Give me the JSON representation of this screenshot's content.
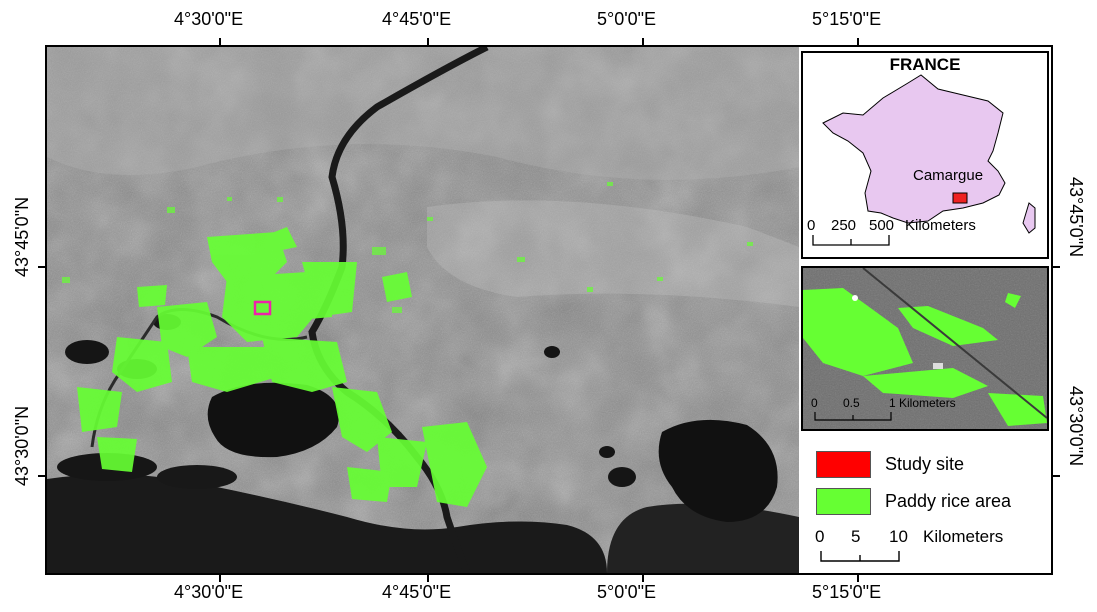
{
  "map": {
    "title_inset": "FRANCE",
    "top_longitudes": [
      "4°30'0\"E",
      "4°45'0\"E",
      "5°0'0\"E",
      "5°15'0\"E"
    ],
    "bottom_longitudes": [
      "4°30'0\"E",
      "4°45'0\"E",
      "5°0'0\"E",
      "5°15'0\"E"
    ],
    "left_latitudes": [
      "43°45'0\"N",
      "43°30'0\"N"
    ],
    "right_latitudes": [
      "43°45'0\"N",
      "43°30'0\"N"
    ]
  },
  "france_inset": {
    "region_label": "Camargue",
    "scale_values": [
      "0",
      "250",
      "500"
    ],
    "scale_unit": "Kilometers",
    "fill_color": "#e8c8f0",
    "marker_color": "#ee2222"
  },
  "detail_inset": {
    "scale_values": [
      "0",
      "0.5",
      "1"
    ],
    "scale_unit": "Kilometers"
  },
  "legend": {
    "items": [
      {
        "label": "Study site",
        "color": "#ff0000"
      },
      {
        "label": "Paddy rice area",
        "color": "#66ff33"
      }
    ],
    "scale_values": [
      "0",
      "5",
      "10"
    ],
    "scale_unit": "Kilometers"
  }
}
